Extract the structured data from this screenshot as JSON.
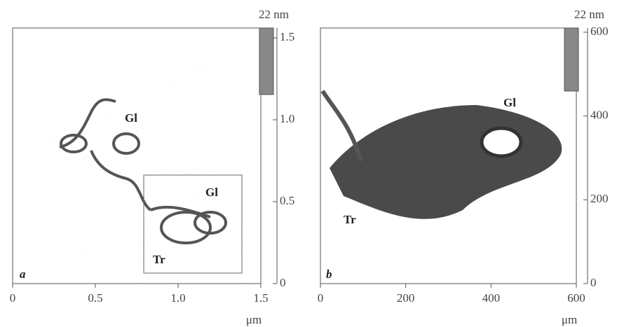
{
  "chart_data": [
    {
      "type": "image",
      "xlabel": "μm",
      "colorbar_label": "22 nm",
      "xlim": [
        0,
        1.5
      ],
      "ylim": [
        0,
        1.56
      ],
      "xticks": [
        0,
        0.5,
        {
          "value": 1,
          "label": "1.0"
        },
        1.5
      ],
      "yticks": [
        0,
        0.5,
        {
          "value": 1,
          "label": "1.0"
        },
        1.5
      ],
      "annotations": [
        "a",
        "Gl",
        "Gl",
        "Tr"
      ]
    },
    {
      "type": "image",
      "xlabel": "μm",
      "colorbar_label": "22 nm",
      "xlim": [
        0,
        600
      ],
      "ylim": [
        0,
        610
      ],
      "xticks": [
        0,
        200,
        400,
        600
      ],
      "yticks": [
        0,
        200,
        400,
        600
      ],
      "annotations": [
        "b",
        "Gl",
        "Tr"
      ]
    }
  ]
}
